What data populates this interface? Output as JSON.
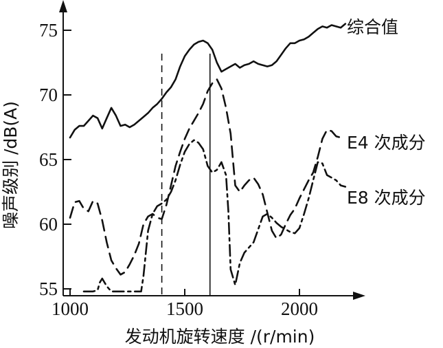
{
  "chart_data": {
    "type": "line",
    "xlabel": "发动机旋转速度 /(r/min)",
    "ylabel": "噪声级别 /dB(A)",
    "xlim": [
      1000,
      2250
    ],
    "ylim": [
      54.5,
      76.5
    ],
    "xticks": [
      1000,
      1500,
      2000
    ],
    "xtick_labels": [
      "1000",
      "1500",
      "2000"
    ],
    "yticks": [
      55,
      60,
      65,
      70,
      75
    ],
    "ytick_labels": [
      "55",
      "60",
      "65",
      "70",
      "75"
    ],
    "grid": false,
    "legend": "inline labels at right ends",
    "vlines": [
      {
        "x": 1400,
        "style": "dashed"
      },
      {
        "x": 1610,
        "style": "solid"
      }
    ],
    "series": [
      {
        "name": "综合值",
        "style": "solid",
        "x": [
          1000,
          1020,
          1040,
          1060,
          1080,
          1100,
          1120,
          1140,
          1160,
          1180,
          1200,
          1220,
          1240,
          1260,
          1280,
          1300,
          1320,
          1340,
          1360,
          1380,
          1400,
          1420,
          1440,
          1460,
          1480,
          1500,
          1520,
          1540,
          1560,
          1580,
          1600,
          1620,
          1640,
          1660,
          1680,
          1700,
          1720,
          1740,
          1760,
          1780,
          1800,
          1820,
          1840,
          1860,
          1880,
          1900,
          1920,
          1940,
          1960,
          1980,
          2000,
          2020,
          2040,
          2060,
          2080,
          2100,
          2120,
          2140,
          2160,
          2180,
          2200
        ],
        "y": [
          66.7,
          67.3,
          67.6,
          67.6,
          68.0,
          68.4,
          68.2,
          67.4,
          68.2,
          69.0,
          68.4,
          67.6,
          67.7,
          67.5,
          67.7,
          68.0,
          68.3,
          68.6,
          69.0,
          69.3,
          69.7,
          70.2,
          70.6,
          71.2,
          72.2,
          73.0,
          73.5,
          73.9,
          74.1,
          74.2,
          74.0,
          73.5,
          72.5,
          71.8,
          72.0,
          72.2,
          72.4,
          72.1,
          72.3,
          72.4,
          72.6,
          72.4,
          72.3,
          72.2,
          72.3,
          72.6,
          73.1,
          73.6,
          74.0,
          74.0,
          74.2,
          74.3,
          74.5,
          74.8,
          75.1,
          75.3,
          75.2,
          75.4,
          75.3,
          75.2,
          75.5
        ]
      },
      {
        "name": "E4 次成分",
        "style": "dashed",
        "x": [
          1000,
          1020,
          1040,
          1060,
          1080,
          1100,
          1120,
          1140,
          1160,
          1180,
          1200,
          1220,
          1240,
          1260,
          1280,
          1300,
          1320,
          1340,
          1360,
          1380,
          1400,
          1420,
          1440,
          1460,
          1480,
          1500,
          1520,
          1540,
          1560,
          1580,
          1600,
          1620,
          1640,
          1660,
          1680,
          1700,
          1720,
          1740,
          1760,
          1780,
          1800,
          1820,
          1840,
          1860,
          1880,
          1900,
          1920,
          1940,
          1960,
          1980,
          2000,
          2020,
          2040,
          2060,
          2080,
          2100,
          2120,
          2140,
          2160,
          2180
        ],
        "y": [
          60.5,
          61.7,
          61.8,
          61.2,
          61.0,
          61.8,
          61.6,
          60.3,
          58.6,
          57.2,
          56.6,
          56.1,
          56.3,
          56.9,
          57.6,
          58.5,
          60.0,
          60.6,
          60.8,
          60.5,
          60.4,
          61.5,
          63.0,
          64.5,
          65.6,
          66.6,
          67.4,
          68.0,
          68.6,
          69.3,
          70.3,
          70.9,
          71.2,
          70.5,
          69.0,
          67.0,
          63.0,
          62.5,
          63.0,
          63.4,
          63.6,
          63.1,
          62.3,
          60.9,
          59.5,
          58.9,
          59.2,
          60.0,
          60.7,
          61.2,
          62.0,
          62.7,
          63.4,
          64.0,
          65.2,
          66.6,
          67.3,
          67.2,
          66.8,
          66.7
        ]
      },
      {
        "name": "E8 次成分",
        "style": "dashdot",
        "x": [
          1060,
          1080,
          1100,
          1120,
          1130,
          1140,
          1160,
          1180,
          1200,
          1220,
          1240,
          1260,
          1280,
          1290,
          1300,
          1310,
          1320,
          1340,
          1360,
          1380,
          1400,
          1420,
          1440,
          1460,
          1480,
          1500,
          1520,
          1540,
          1560,
          1580,
          1600,
          1620,
          1640,
          1660,
          1680,
          1690,
          1700,
          1720,
          1740,
          1760,
          1780,
          1800,
          1820,
          1840,
          1860,
          1880,
          1900,
          1920,
          1940,
          1960,
          1980,
          2000,
          2020,
          2040,
          2060,
          2080,
          2100,
          2120,
          2140,
          2160,
          2180,
          2200
        ],
        "y": [
          54.8,
          54.8,
          54.8,
          54.9,
          55.5,
          55.8,
          55.2,
          54.8,
          54.8,
          54.8,
          54.8,
          54.8,
          54.8,
          54.8,
          54.8,
          54.8,
          56.0,
          59.5,
          60.8,
          61.4,
          61.6,
          61.9,
          62.5,
          63.4,
          64.6,
          65.6,
          66.2,
          66.5,
          66.3,
          65.8,
          64.5,
          64.0,
          64.2,
          64.8,
          63.8,
          61.0,
          56.5,
          55.3,
          57.0,
          57.8,
          58.2,
          58.6,
          59.6,
          60.6,
          60.8,
          60.5,
          60.1,
          59.8,
          59.6,
          59.4,
          59.3,
          59.7,
          60.8,
          62.0,
          63.4,
          64.8,
          64.7,
          63.8,
          63.6,
          63.4,
          63.0,
          62.9
        ]
      }
    ]
  }
}
